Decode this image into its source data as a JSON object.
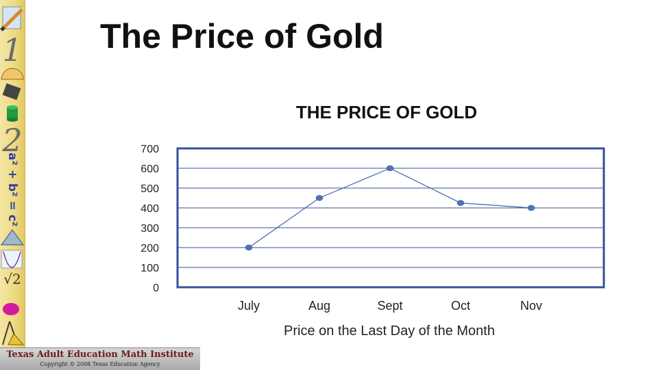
{
  "slide": {
    "title": "The Price of Gold"
  },
  "footer": {
    "institute": "Texas Adult Education Math Institute",
    "copyright": "Copyright © 2008 Texas Education Agency"
  },
  "sidebar": {
    "icons": [
      "pencil-icon",
      "protractor-icon",
      "calculator-icon",
      "cylinder-icon",
      "triangle-icon",
      "parabola-icon",
      "ellipse-icon",
      "compass-icon"
    ],
    "numeral_one": "1",
    "numeral_two": "2",
    "formula": "a² + b² = c²",
    "sqrt": "√2"
  },
  "chart_data": {
    "type": "line",
    "title": "THE PRICE OF GOLD",
    "xlabel": "Price on the Last Day of the Month",
    "ylabel": "",
    "categories": [
      "July",
      "Aug",
      "Sept",
      "Oct",
      "Nov"
    ],
    "series": [
      {
        "values": [
          200,
          450,
          600,
          425,
          400
        ]
      }
    ],
    "ylim": [
      0,
      700
    ],
    "yticks": [
      "0",
      "100",
      "200",
      "300",
      "400",
      "500",
      "600",
      "700"
    ],
    "grid": true,
    "legend": "none",
    "colors": {
      "line": "#3f63a8",
      "marker": "#4f72b8",
      "frame": "#34509a",
      "grid": "#34509a"
    }
  }
}
